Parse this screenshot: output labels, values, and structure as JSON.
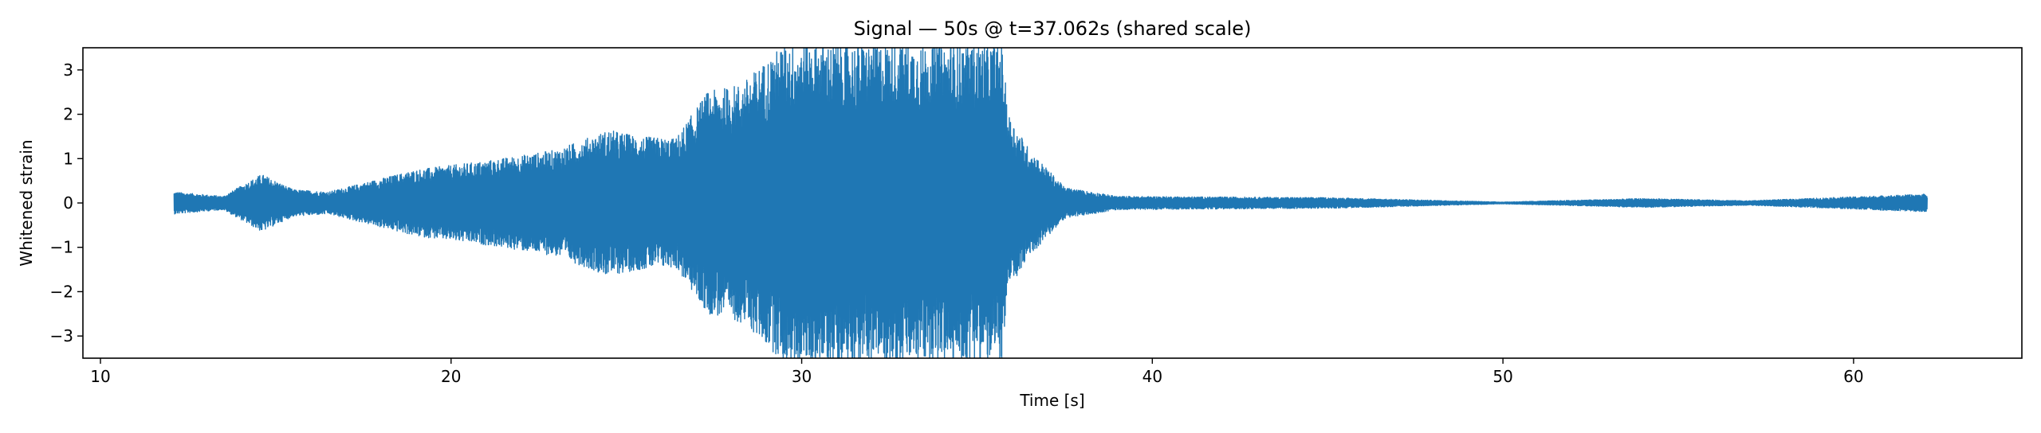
{
  "chart_data": {
    "type": "line",
    "title": "Signal — 50s @ t=37.062s (shared scale)",
    "xlabel": "Time [s]",
    "ylabel": "Whitened strain",
    "xlim": [
      9.5,
      64.8
    ],
    "ylim": [
      -3.5,
      3.5
    ],
    "xticks": [
      10,
      20,
      30,
      40,
      50,
      60
    ],
    "yticks": [
      -3,
      -2,
      -1,
      0,
      1,
      2,
      3
    ],
    "xtick_labels": [
      "10",
      "20",
      "30",
      "40",
      "50",
      "60"
    ],
    "ytick_labels": [
      "−3",
      "−2",
      "−1",
      "0",
      "1",
      "2",
      "3"
    ],
    "grid": false,
    "series": [
      {
        "color": "#1f77b4",
        "t_start": 12.1,
        "t_end": 62.1,
        "envelope": [
          {
            "t": 12.1,
            "amp": 0.25
          },
          {
            "t": 13.5,
            "amp": 0.15
          },
          {
            "t": 14.6,
            "amp": 0.65
          },
          {
            "t": 15.5,
            "amp": 0.3
          },
          {
            "t": 16.5,
            "amp": 0.25
          },
          {
            "t": 17.5,
            "amp": 0.45
          },
          {
            "t": 19.0,
            "amp": 0.75
          },
          {
            "t": 21.0,
            "amp": 0.95
          },
          {
            "t": 23.0,
            "amp": 1.2
          },
          {
            "t": 24.5,
            "amp": 1.65
          },
          {
            "t": 25.4,
            "amp": 1.5
          },
          {
            "t": 26.4,
            "amp": 1.45
          },
          {
            "t": 27.3,
            "amp": 2.5
          },
          {
            "t": 28.3,
            "amp": 2.7
          },
          {
            "t": 29.5,
            "amp": 3.6
          },
          {
            "t": 32.0,
            "amp": 3.6
          },
          {
            "t": 35.7,
            "amp": 3.6
          },
          {
            "t": 35.9,
            "amp": 2.0
          },
          {
            "t": 36.5,
            "amp": 1.2
          },
          {
            "t": 37.5,
            "amp": 0.35
          },
          {
            "t": 39.0,
            "amp": 0.15
          },
          {
            "t": 45.0,
            "amp": 0.12
          },
          {
            "t": 50.0,
            "amp": 0.02
          },
          {
            "t": 54.0,
            "amp": 0.1
          },
          {
            "t": 57.0,
            "amp": 0.05
          },
          {
            "t": 62.1,
            "amp": 0.2
          }
        ]
      }
    ]
  }
}
